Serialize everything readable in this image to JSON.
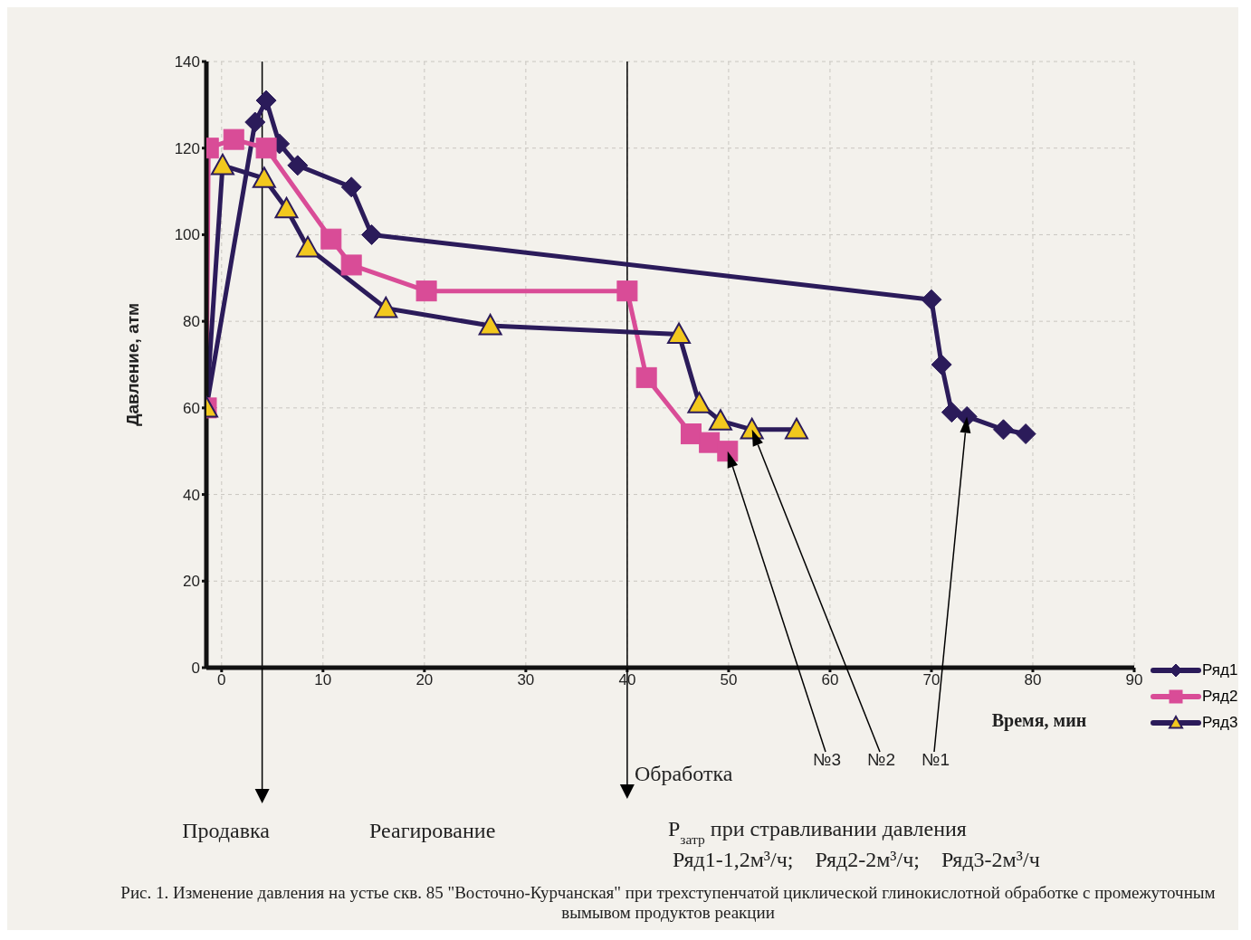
{
  "chart_data": {
    "type": "line",
    "xlabel": "Время, мин",
    "ylabel": "Давление, атм",
    "xlim": [
      -1.5,
      90
    ],
    "xticks": [
      0,
      10,
      20,
      30,
      40,
      50,
      60,
      70,
      80,
      90
    ],
    "ylim": [
      0,
      140
    ],
    "yticks": [
      0,
      20,
      40,
      60,
      80,
      100,
      120,
      140
    ],
    "grid": true,
    "legend": "bottom right",
    "line_style": "solid",
    "series": [
      {
        "name": "Ряд1",
        "color": "#2b1b5a",
        "marker": "diamond",
        "x": [
          -1.5,
          3.3,
          4.4,
          5.7,
          7.5,
          12.8,
          14.8,
          70,
          71,
          72,
          73.5,
          77.1,
          79.3
        ],
        "values": [
          60,
          126,
          131,
          121,
          116,
          111,
          100,
          85,
          70,
          59,
          58,
          55,
          54
        ]
      },
      {
        "name": "Ряд2",
        "color": "#d94c97",
        "marker": "square",
        "x": [
          -1.5,
          -1.3,
          1.2,
          4.4,
          10.8,
          12.8,
          20.2,
          40,
          41.9,
          46.3,
          48.1,
          49.9
        ],
        "values": [
          60,
          120,
          122,
          120,
          99,
          93,
          87,
          87,
          67,
          54,
          52,
          50
        ]
      },
      {
        "name": "Ряд3",
        "color": "#2b1b5a",
        "colors": [
          "#f2c81e",
          "#f2c81e",
          "#f2c81e",
          "#f2c81e",
          "#f2c81e",
          "#f2c81e",
          "#f2c81e",
          "#f2c81e",
          "#f2c81e",
          "#f2c81e",
          "#f2c81e",
          "#f2c81e"
        ],
        "marker": "triangle",
        "x": [
          -1.5,
          0.1,
          4.2,
          6.4,
          8.5,
          16.2,
          26.5,
          45.1,
          47.1,
          49.2,
          52.3,
          56.7
        ],
        "values": [
          60,
          116,
          113,
          106,
          97,
          83,
          79,
          77,
          61,
          57,
          55,
          55
        ]
      }
    ],
    "ref_lines": [
      {
        "axis": "x",
        "value": 4,
        "label": "Продавка",
        "color": "#000000"
      },
      {
        "axis": "x",
        "value": 40,
        "label": "Обработка",
        "color": "#000000"
      }
    ],
    "annotations": [
      "Реагирование",
      "P$_{затр}$ при стравливании давления",
      "Ряд1-1,2м³/ч;    Ряд2-2м³/ч;    Ряд3-2м³/ч",
      "Рис. 1. Изменение давления на устье скв. 85 \"Восточно-Курчанская\" при трехступенчатой циклической глинокислотной обработке с промежуточным вымывом продуктов реакции",
      "№3",
      "№2",
      "№1"
    ]
  }
}
